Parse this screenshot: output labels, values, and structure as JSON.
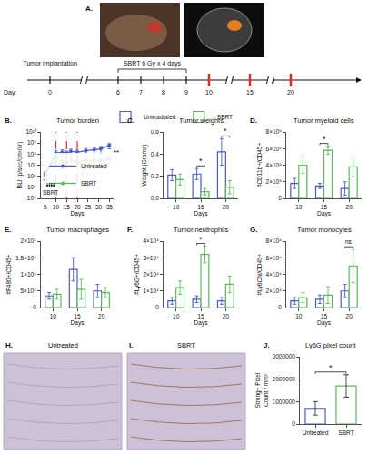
{
  "panel_a": {
    "label": "A.",
    "implantation_text": "Tumor implantation",
    "treatment_text": "SBRT 6 Gy x 4 days",
    "day_label": "Day:",
    "days": [
      0,
      6,
      7,
      8,
      9,
      10,
      15,
      20
    ],
    "treatment_days": [
      6,
      7,
      8,
      9
    ],
    "collection_days": [
      10,
      15,
      20
    ],
    "collection_color": "#e8262b"
  },
  "images": [
    {
      "label": "H.",
      "title": "Untreated"
    },
    {
      "label": "I.",
      "title": "SBRT"
    }
  ],
  "chart_data": [
    {
      "label": "B.",
      "type": "line",
      "title": "Tumor burden",
      "x_label": "Days",
      "y_label": "BLI (p/sec/cm²/sr)",
      "log": "y",
      "grid": false,
      "marker": "circle",
      "xlim": [
        3,
        37
      ],
      "xticks": [
        5,
        10,
        15,
        20,
        25,
        30,
        35
      ],
      "ylim": [
        10000,
        10000000000
      ],
      "yticks": [
        {
          "value": 10000,
          "label": "10⁴"
        },
        {
          "value": 100000,
          "label": "10⁵"
        },
        {
          "value": 1000000,
          "label": "10⁶"
        },
        {
          "value": 10000000,
          "label": "10⁷"
        },
        {
          "value": 100000000,
          "label": "10⁸"
        },
        {
          "value": 1000000000,
          "label": "10⁹"
        },
        {
          "value": 10000000000,
          "label": "10¹⁰"
        }
      ],
      "x": [
        5,
        10,
        13,
        15,
        17,
        20,
        24,
        28,
        31,
        35
      ],
      "series": [
        {
          "name": "Untreated",
          "color": "#4a5bc4",
          "values": [
            1500000,
            120000000,
            150000000,
            120000000,
            180000000,
            150000000,
            200000000,
            250000000,
            300000000,
            600000000
          ],
          "errors": [
            1000000,
            80000000,
            90000000,
            70000000,
            100000000,
            90000000,
            120000000,
            150000000,
            200000000,
            300000000
          ]
        },
        {
          "name": "SBRT",
          "color": "#5cb85c",
          "values": [
            1200000,
            60000000,
            20000000,
            15000000,
            30000000,
            20000000,
            30000000,
            25000000,
            30000000,
            40000000
          ],
          "errors": [
            800000,
            40000000,
            15000000,
            10000000,
            20000000,
            15000000,
            20000000,
            15000000,
            20000000,
            25000000
          ]
        }
      ],
      "legend": "bottom right",
      "vertical_lines": {
        "x": [
          10,
          15,
          20
        ],
        "color": "#e8262b",
        "line_style": "dashed"
      },
      "annotations": [
        {
          "text": "SBRT",
          "x": 7.5
        }
      ],
      "arrow_days": [
        6,
        7,
        8,
        9
      ],
      "significance": [
        {
          "x": 35,
          "text": "**"
        }
      ]
    },
    {
      "label": "C.",
      "type": "bar",
      "title": "Tumor weights",
      "x_label": "Days",
      "y_label": "Weight (Grams)",
      "grid": false,
      "categories": [
        "10",
        "15",
        "20"
      ],
      "ylim": [
        0,
        0.6
      ],
      "yticks": [
        {
          "value": 0,
          "label": "0.0"
        },
        0.2,
        0.4,
        0.6
      ],
      "series": [
        {
          "name": "Unirradiated",
          "color": "#4a5bc4",
          "values": [
            0.21,
            0.22,
            0.42
          ],
          "errors": [
            0.05,
            0.05,
            0.12
          ]
        },
        {
          "name": "SBRT",
          "color": "#5cb85c",
          "values": [
            0.17,
            0.06,
            0.1
          ],
          "errors": [
            0.05,
            0.03,
            0.06
          ]
        }
      ],
      "legend": "top",
      "significance": [
        {
          "category": "15",
          "text": "*"
        },
        {
          "category": "20",
          "text": "*"
        }
      ]
    },
    {
      "label": "D.",
      "type": "bar",
      "title": "Tumor myeloid cells",
      "x_label": "Days",
      "y_label": "#CD11b+/CD45+",
      "grid": false,
      "categories": [
        "10",
        "15",
        "20"
      ],
      "ylim": [
        0,
        800000
      ],
      "yticks": [
        0,
        {
          "value": 200000,
          "label": "2×10⁵"
        },
        {
          "value": 400000,
          "label": "4×10⁵"
        },
        {
          "value": 600000,
          "label": "6×10⁵"
        },
        {
          "value": 800000,
          "label": "8×10⁵"
        }
      ],
      "series": [
        {
          "name": "Unirradiated",
          "color": "#4a5bc4",
          "values": [
            180000,
            150000,
            120000
          ],
          "errors": [
            60000,
            30000,
            80000
          ]
        },
        {
          "name": "SBRT",
          "color": "#5cb85c",
          "values": [
            400000,
            580000,
            380000
          ],
          "errors": [
            100000,
            50000,
            120000
          ]
        }
      ],
      "significance": [
        {
          "category": "15",
          "text": "*"
        }
      ]
    },
    {
      "label": "E.",
      "type": "bar",
      "title": "Tumor macrophages",
      "x_label": "Days",
      "y_label": "#F480+/CD45+",
      "grid": false,
      "categories": [
        "10",
        "15",
        "20"
      ],
      "ylim": [
        0,
        200000
      ],
      "yticks": [
        0,
        {
          "value": 50000,
          "label": "5×10⁴"
        },
        {
          "value": 100000,
          "label": "1×10⁵"
        },
        {
          "value": 150000,
          "label": "1.5×10⁵"
        },
        {
          "value": 200000,
          "label": "2×10⁵"
        }
      ],
      "series": [
        {
          "name": "Unirradiated",
          "color": "#4a5bc4",
          "values": [
            35000,
            115000,
            50000
          ],
          "errors": [
            10000,
            35000,
            20000
          ]
        },
        {
          "name": "SBRT",
          "color": "#5cb85c",
          "values": [
            40000,
            55000,
            45000
          ],
          "errors": [
            15000,
            30000,
            15000
          ]
        }
      ]
    },
    {
      "label": "F.",
      "type": "bar",
      "title": "Tumor neutrophils",
      "x_label": "Days",
      "y_label": "#Ly6G+/CD45+",
      "grid": false,
      "categories": [
        "10",
        "15",
        "20"
      ],
      "ylim": [
        0,
        40000
      ],
      "yticks": [
        0,
        {
          "value": 10000,
          "label": "1×10⁴"
        },
        {
          "value": 20000,
          "label": "2×10⁴"
        },
        {
          "value": 30000,
          "label": "3×10⁴"
        },
        {
          "value": 40000,
          "label": "4×10⁴"
        }
      ],
      "series": [
        {
          "name": "Unirradiated",
          "color": "#4a5bc4",
          "values": [
            4000,
            5000,
            4000
          ],
          "errors": [
            2000,
            2000,
            2000
          ]
        },
        {
          "name": "SBRT",
          "color": "#5cb85c",
          "values": [
            12000,
            32000,
            14000
          ],
          "errors": [
            4000,
            5000,
            5000
          ]
        }
      ],
      "significance": [
        {
          "category": "15",
          "text": "*"
        }
      ]
    },
    {
      "label": "G.",
      "type": "bar",
      "title": "Tumor monocytes",
      "x_label": "Days",
      "y_label": "#Ly6Chi/CD45+",
      "grid": false,
      "categories": [
        "10",
        "15",
        "20"
      ],
      "ylim": [
        0,
        80000
      ],
      "yticks": [
        0,
        {
          "value": 20000,
          "label": "2×10⁴"
        },
        {
          "value": 40000,
          "label": "4×10⁴"
        },
        {
          "value": 60000,
          "label": "6×10⁴"
        },
        {
          "value": 80000,
          "label": "8×10⁴"
        }
      ],
      "series": [
        {
          "name": "Unirradiated",
          "color": "#4a5bc4",
          "values": [
            8000,
            10000,
            20000
          ],
          "errors": [
            4000,
            5000,
            8000
          ]
        },
        {
          "name": "SBRT",
          "color": "#5cb85c",
          "values": [
            12000,
            15000,
            50000
          ],
          "errors": [
            6000,
            10000,
            20000
          ]
        }
      ],
      "significance": [
        {
          "category": "20",
          "text": "ns"
        }
      ]
    },
    {
      "label": "J.",
      "type": "bar",
      "title": "Ly6G pixel count",
      "y_label": "Strong+ Pixel Count / mm²",
      "grid": false,
      "categories": [
        "Untreated",
        "SBRT"
      ],
      "values": [
        700000,
        1700000
      ],
      "errors": [
        300000,
        500000
      ],
      "colors": [
        "#4a5bc4",
        "#5cb85c"
      ],
      "ylim": [
        0,
        3000000
      ],
      "yticks": [
        0,
        1000000,
        2000000,
        3000000
      ],
      "significance": [
        {
          "categories": [
            "Untreated",
            "SBRT"
          ],
          "text": "*"
        }
      ]
    }
  ]
}
